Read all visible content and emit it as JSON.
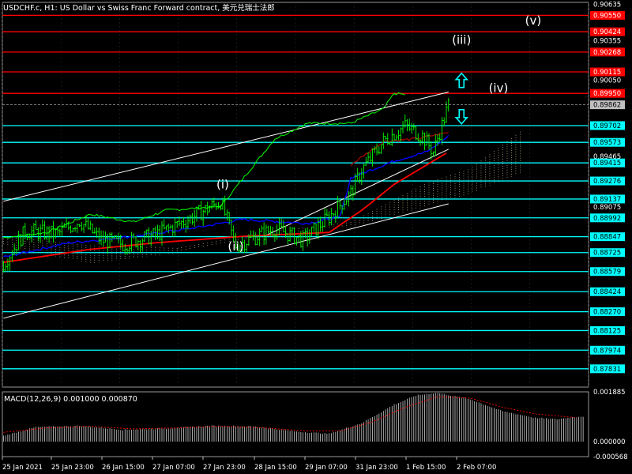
{
  "header": {
    "symbol_title": "USDCHF.c, H1:  US Dollar vs Swiss Franc Forward contract, 美元兑瑞士法郎"
  },
  "macd": {
    "label": "MACD(12,26,9) 0.001000 0.000870",
    "axis_labels": [
      "0.001885",
      "0.000000",
      "-0.000568"
    ]
  },
  "colors": {
    "background": "#000000",
    "red_level": "#ff0000",
    "cyan_level": "#00ffff",
    "price_line": "#00ff00",
    "channel": "#ffffff",
    "ma_blue": "#0000ff",
    "ma_red": "#ff0000",
    "ma_darkred": "#b00000",
    "ichimoku_cloud": "#f5deb3"
  },
  "chart_data": {
    "type": "line",
    "title": "USDCHF.c, H1:  US Dollar vs Swiss Franc Forward contract, 美元兑瑞士法郎",
    "x_ticks": [
      "25 Jan 2021",
      "25 Jan 23:00",
      "26 Jan 15:00",
      "27 Jan 07:00",
      "27 Jan 23:00",
      "28 Jan 15:00",
      "29 Jan 07:00",
      "31 Jan 23:00",
      "1 Feb 15:00",
      "2 Feb 07:00"
    ],
    "y_ticks": [
      "0.90635",
      "0.90355",
      "0.90050",
      "0.89465",
      "0.89075"
    ],
    "ylim": [
      0.8769,
      0.9065
    ],
    "current_price": "0.89862",
    "levels": [
      {
        "label": "0.90550",
        "value": 0.9055,
        "kind": "resistance"
      },
      {
        "label": "0.90424",
        "value": 0.90424,
        "kind": "resistance"
      },
      {
        "label": "0.90268",
        "value": 0.90268,
        "kind": "resistance"
      },
      {
        "label": "0.90115",
        "value": 0.90115,
        "kind": "resistance"
      },
      {
        "label": "0.89950",
        "value": 0.8995,
        "kind": "resistance"
      },
      {
        "label": "0.89702",
        "value": 0.89702,
        "kind": "support"
      },
      {
        "label": "0.89573",
        "value": 0.89573,
        "kind": "support"
      },
      {
        "label": "0.89415",
        "value": 0.89415,
        "kind": "support"
      },
      {
        "label": "0.89276",
        "value": 0.89276,
        "kind": "support"
      },
      {
        "label": "0.89137",
        "value": 0.89137,
        "kind": "support"
      },
      {
        "label": "0.88992",
        "value": 0.88992,
        "kind": "support"
      },
      {
        "label": "0.88847",
        "value": 0.88847,
        "kind": "support"
      },
      {
        "label": "0.88725",
        "value": 0.88725,
        "kind": "support"
      },
      {
        "label": "0.88579",
        "value": 0.88579,
        "kind": "support"
      },
      {
        "label": "0.88424",
        "value": 0.88424,
        "kind": "support"
      },
      {
        "label": "0.88270",
        "value": 0.8827,
        "kind": "support"
      },
      {
        "label": "0.88125",
        "value": 0.88125,
        "kind": "support"
      },
      {
        "label": "0.87974",
        "value": 0.87974,
        "kind": "support"
      },
      {
        "label": "0.87831",
        "value": 0.87831,
        "kind": "support"
      }
    ],
    "wave_labels": [
      {
        "text": "(i)",
        "bar": 101,
        "price": 0.8922
      },
      {
        "text": "(ii)",
        "bar": 107,
        "price": 0.8874
      },
      {
        "text": "(iii)",
        "bar": 211,
        "price": 0.9033
      },
      {
        "text": "(iv)",
        "bar": 228,
        "price": 0.8996
      },
      {
        "text": "(v)",
        "bar": 244,
        "price": 0.9048
      }
    ],
    "arrows": [
      {
        "direction": "up",
        "bar": 211,
        "price": 0.9005
      },
      {
        "direction": "down",
        "bar": 211,
        "price": 0.8977
      }
    ],
    "channel": {
      "upper": [
        [
          0,
          0.8912
        ],
        [
          205,
          0.8996
        ]
      ],
      "middle": [
        [
          120,
          0.8885
        ],
        [
          205,
          0.8952
        ]
      ],
      "lower": [
        [
          0,
          0.8822
        ],
        [
          205,
          0.891
        ]
      ]
    },
    "price_anchors": [
      [
        0,
        0.8864
      ],
      [
        10,
        0.8889
      ],
      [
        25,
        0.8887
      ],
      [
        35,
        0.8897
      ],
      [
        45,
        0.8882
      ],
      [
        55,
        0.8879
      ],
      [
        70,
        0.8886
      ],
      [
        85,
        0.8898
      ],
      [
        100,
        0.8912
      ],
      [
        107,
        0.8878
      ],
      [
        125,
        0.8891
      ],
      [
        138,
        0.8882
      ],
      [
        150,
        0.89
      ],
      [
        160,
        0.8918
      ],
      [
        165,
        0.8936
      ],
      [
        175,
        0.8958
      ],
      [
        185,
        0.897
      ],
      [
        193,
        0.8962
      ],
      [
        198,
        0.895
      ],
      [
        205,
        0.8986
      ]
    ],
    "lagging_anchors": [
      [
        0,
        0.8884
      ],
      [
        20,
        0.8888
      ],
      [
        40,
        0.8902
      ],
      [
        60,
        0.8896
      ],
      [
        75,
        0.8905
      ],
      [
        100,
        0.8908
      ],
      [
        125,
        0.896
      ],
      [
        140,
        0.8972
      ],
      [
        160,
        0.8972
      ],
      [
        175,
        0.8983
      ],
      [
        180,
        0.8995
      ],
      [
        185,
        0.8994
      ]
    ],
    "ma_blue_anchors": [
      [
        0,
        0.8869
      ],
      [
        30,
        0.888
      ],
      [
        60,
        0.8885
      ],
      [
        90,
        0.8892
      ],
      [
        110,
        0.8898
      ],
      [
        140,
        0.8895
      ],
      [
        155,
        0.89
      ],
      [
        160,
        0.893
      ],
      [
        180,
        0.8943
      ],
      [
        195,
        0.895
      ],
      [
        205,
        0.8962
      ]
    ],
    "ma_red_anchors": [
      [
        0,
        0.8865
      ],
      [
        40,
        0.8875
      ],
      [
        70,
        0.888
      ],
      [
        110,
        0.8885
      ],
      [
        150,
        0.8888
      ],
      [
        165,
        0.8905
      ],
      [
        180,
        0.8925
      ],
      [
        195,
        0.894
      ],
      [
        205,
        0.895
      ]
    ],
    "ma_darkred_anchors": [
      [
        160,
        0.894
      ],
      [
        175,
        0.8958
      ],
      [
        190,
        0.896
      ],
      [
        205,
        0.8965
      ]
    ],
    "cloud": {
      "top": [
        [
          0,
          0.8885
        ],
        [
          40,
          0.8878
        ],
        [
          80,
          0.8876
        ],
        [
          120,
          0.8888
        ],
        [
          160,
          0.8896
        ],
        [
          195,
          0.8926
        ],
        [
          215,
          0.8937
        ],
        [
          240,
          0.8968
        ]
      ],
      "bottom": [
        [
          0,
          0.8878
        ],
        [
          40,
          0.8864
        ],
        [
          80,
          0.8872
        ],
        [
          120,
          0.8886
        ],
        [
          160,
          0.8892
        ],
        [
          195,
          0.8908
        ],
        [
          215,
          0.8918
        ],
        [
          240,
          0.8935
        ]
      ]
    },
    "macd_anchors": [
      [
        0,
        0.00022
      ],
      [
        15,
        0.00055
      ],
      [
        35,
        0.0006
      ],
      [
        55,
        0.00045
      ],
      [
        75,
        0.0005
      ],
      [
        95,
        0.0006
      ],
      [
        115,
        0.00058
      ],
      [
        135,
        0.00038
      ],
      [
        150,
        0.0003
      ],
      [
        165,
        0.0007
      ],
      [
        180,
        0.0014
      ],
      [
        190,
        0.00175
      ],
      [
        200,
        0.00185
      ],
      [
        215,
        0.0016
      ],
      [
        230,
        0.00115
      ],
      [
        245,
        0.0009
      ],
      [
        255,
        0.00085
      ],
      [
        265,
        0.00095
      ]
    ],
    "signal_anchors": [
      [
        0,
        0.00035
      ],
      [
        20,
        0.00052
      ],
      [
        40,
        0.00058
      ],
      [
        60,
        0.00048
      ],
      [
        80,
        0.00052
      ],
      [
        100,
        0.00058
      ],
      [
        120,
        0.00052
      ],
      [
        140,
        0.0004
      ],
      [
        155,
        0.0004
      ],
      [
        170,
        0.00075
      ],
      [
        185,
        0.0013
      ],
      [
        200,
        0.0017
      ],
      [
        215,
        0.00165
      ],
      [
        230,
        0.0013
      ],
      [
        245,
        0.00105
      ],
      [
        265,
        0.0009
      ]
    ],
    "macd_ylim": [
      -0.000568,
      0.001885
    ]
  }
}
